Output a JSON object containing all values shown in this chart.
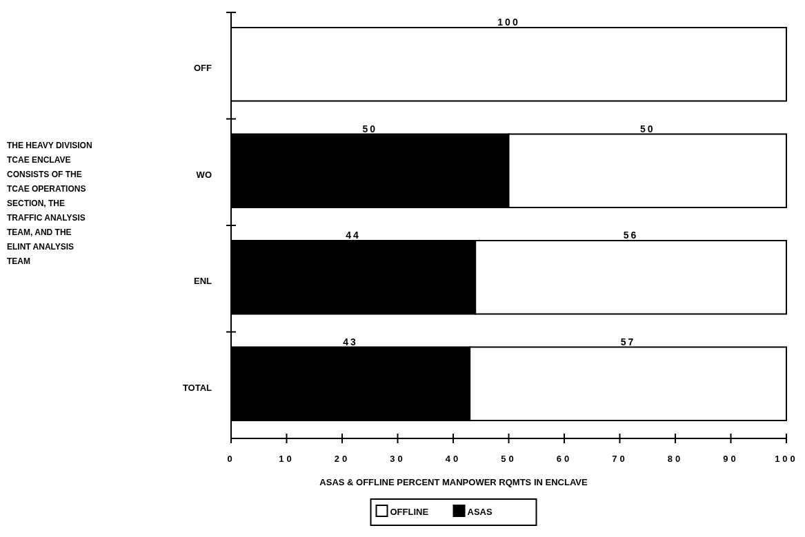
{
  "chart_data": {
    "type": "bar",
    "orientation": "horizontal",
    "stacked": true,
    "categories": [
      "OFF",
      "WO",
      "ENL",
      "TOTAL"
    ],
    "series": [
      {
        "name": "ASAS",
        "color": "#000000",
        "values": [
          0,
          50,
          44,
          43
        ],
        "value_labels": [
          null,
          "50",
          "44",
          "43"
        ]
      },
      {
        "name": "OFFLINE",
        "color": "#ffffff",
        "values": [
          100,
          50,
          56,
          57
        ],
        "value_labels": [
          "100",
          "50",
          "56",
          "57"
        ]
      }
    ],
    "xlim": [
      0,
      100
    ],
    "xticks": [
      0,
      10,
      20,
      30,
      40,
      50,
      60,
      70,
      80,
      90,
      100
    ],
    "xlabel": "ASAS & OFFLINE PERCENT MANPOWER RQMTS IN ENCLAVE",
    "annotations": [
      "THE HEAVY DIVISION TCAE ENCLAVE CONSISTS OF THE TCAE OPERATIONS SECTION, THE TRAFFIC ANALYSIS TEAM, AND THE ELINT ANALYSIS TEAM"
    ],
    "legend": "bottom",
    "grid": false
  }
}
